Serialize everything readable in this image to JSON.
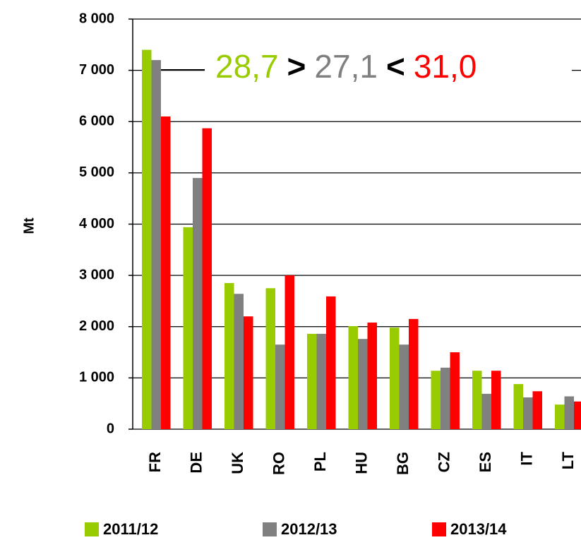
{
  "chart_data": {
    "type": "bar",
    "y_label": "Mt",
    "categories": [
      "FR",
      "DE",
      "UK",
      "RO",
      "PL",
      "HU",
      "BG",
      "CZ",
      "ES",
      "IT",
      "LT"
    ],
    "series": [
      {
        "name": "2011/12",
        "color": "#99cc00",
        "values": [
          7400,
          3940,
          2850,
          2750,
          1860,
          2010,
          1980,
          1140,
          1140,
          880,
          480
        ]
      },
      {
        "name": "2012/13",
        "color": "#808080",
        "values": [
          7200,
          4900,
          2640,
          1650,
          1860,
          1760,
          1650,
          1200,
          690,
          620,
          640
        ]
      },
      {
        "name": "2013/14",
        "color": "#ff0000",
        "values": [
          6100,
          5870,
          2200,
          3000,
          2590,
          2080,
          2150,
          1500,
          1140,
          740,
          540
        ]
      }
    ],
    "annotation": [
      {
        "text": "28,7",
        "color": "#99cc00"
      },
      {
        "text": ">",
        "color": "#000000"
      },
      {
        "text": "27,1",
        "color": "#808080"
      },
      {
        "text": "<",
        "color": "#000000"
      },
      {
        "text": "31,0",
        "color": "#ff0000"
      }
    ],
    "ylim": [
      0,
      8000
    ],
    "yticks": [
      0,
      {
        "value": 1000,
        "label": "1 000"
      },
      {
        "value": 2000,
        "label": "2 000"
      },
      {
        "value": 3000,
        "label": "3 000"
      },
      {
        "value": 4000,
        "label": "4 000"
      },
      {
        "value": 5000,
        "label": "5 000"
      },
      {
        "value": 6000,
        "label": "6 000"
      },
      {
        "value": 7000,
        "label": "7 000"
      },
      {
        "value": 8000,
        "label": "8 000"
      }
    ],
    "grid": true
  }
}
